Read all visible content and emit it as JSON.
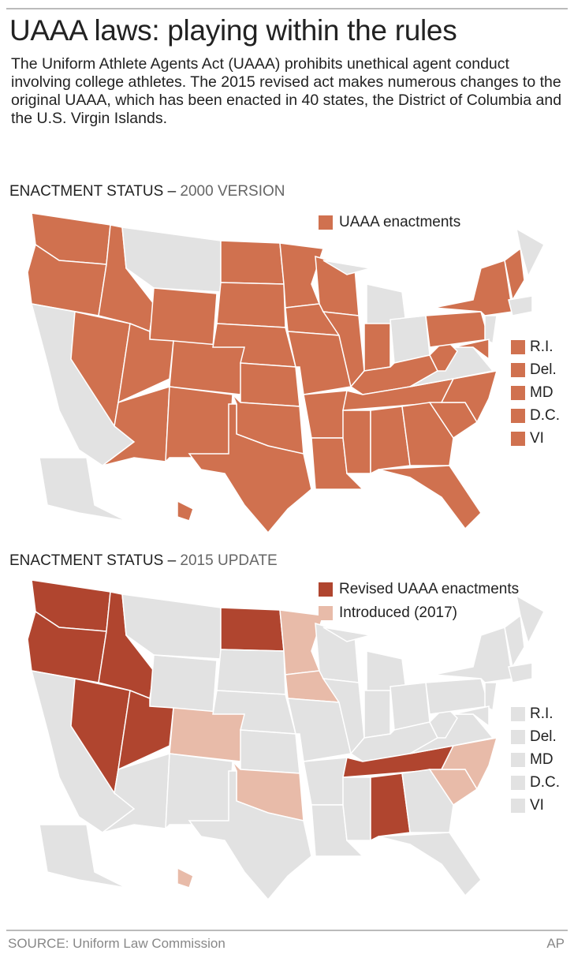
{
  "header": {
    "title": "UAAA laws: playing within the rules",
    "description": "The Uniform Athlete Agents Act (UAAA) prohibits unethical agent conduct involving college athletes. The 2015 revised act makes numerous changes to the original UAAA, which has been enacted in 40 states, the District of Columbia and the U.S. Virgin Islands."
  },
  "maps": [
    {
      "heading": "ENACTMENT STATUS –",
      "version": "2000 VERSION",
      "legend": [
        "UAAA enactments"
      ],
      "small_states": [
        "R.I.",
        "Del.",
        "MD",
        "D.C.",
        "VI"
      ]
    },
    {
      "heading": "ENACTMENT STATUS –",
      "version": "2015 UPDATE",
      "legend": [
        "Revised UAAA enactments",
        "Introduced (2017)"
      ],
      "small_states": [
        "R.I.",
        "Del.",
        "MD",
        "D.C.",
        "VI"
      ]
    }
  ],
  "footer": {
    "source": "SOURCE: Uniform Law Commission",
    "credit": "AP"
  }
}
